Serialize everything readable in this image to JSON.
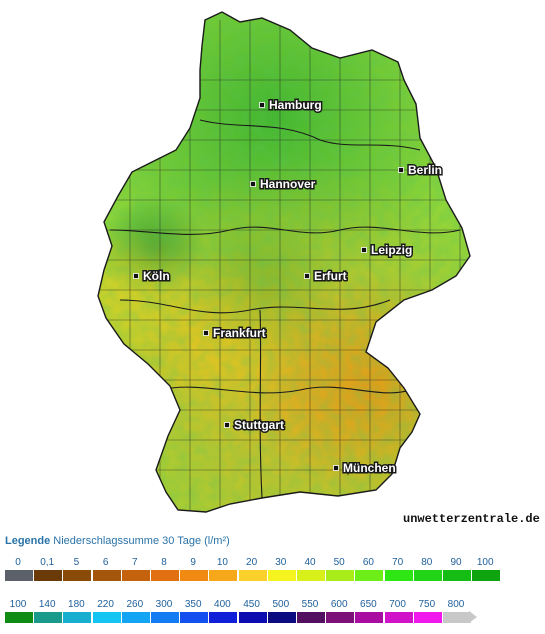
{
  "map": {
    "cities": [
      {
        "key": "hamburg",
        "name": "Hamburg"
      },
      {
        "key": "berlin",
        "name": "Berlin"
      },
      {
        "key": "hannover",
        "name": "Hannover"
      },
      {
        "key": "leipzig",
        "name": "Leipzig"
      },
      {
        "key": "koeln",
        "name": "Köln"
      },
      {
        "key": "erfurt",
        "name": "Erfurt"
      },
      {
        "key": "frankfurt",
        "name": "Frankfurt"
      },
      {
        "key": "stuttgart",
        "name": "Stuttgart"
      },
      {
        "key": "muenchen",
        "name": "München"
      }
    ],
    "watermark": "unwetterzentrale.de",
    "colors": {
      "land_base": "#8fd63a",
      "wet": "#2fb53a",
      "dry": "#f2c62a",
      "border": "#2b2b2b"
    }
  },
  "legend": {
    "title_bold": "Legende",
    "title_rest": "Niederschlagssumme 30 Tage  (l/m²)",
    "row1_labels": [
      "0",
      "0,1",
      "5",
      "6",
      "7",
      "8",
      "9",
      "10",
      "20",
      "30",
      "40",
      "50",
      "60",
      "70",
      "80",
      "90",
      "100"
    ],
    "row1_colors": [
      "#5c6068",
      "#6a3a08",
      "#8a4a08",
      "#a4560c",
      "#c4620e",
      "#e07010",
      "#f18a12",
      "#f7a81a",
      "#fbd02a",
      "#f6f41e",
      "#d8f01a",
      "#a8ec1a",
      "#6eee18",
      "#2ee614",
      "#22d418",
      "#14bc14",
      "#0ea410"
    ],
    "row2_labels": [
      "100",
      "140",
      "180",
      "220",
      "260",
      "300",
      "350",
      "400",
      "450",
      "500",
      "550",
      "600",
      "650",
      "700",
      "750",
      "800"
    ],
    "row2_colors": [
      "#0e8c14",
      "#1a9a8a",
      "#18aed0",
      "#14c4f2",
      "#14a4f4",
      "#147cf2",
      "#1450f0",
      "#1020d8",
      "#0c0cb0",
      "#0c0a80",
      "#541060",
      "#7e107a",
      "#a80ca0",
      "#d012c8",
      "#f018ec",
      "#c8c8c8"
    ]
  }
}
